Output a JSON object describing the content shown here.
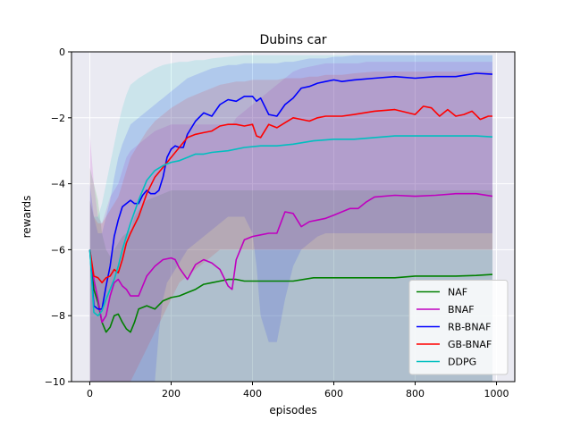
{
  "chart_data": {
    "type": "line",
    "title": "Dubins car",
    "xlabel": "episodes",
    "ylabel": "rewards",
    "xlim": [
      -45,
      1045
    ],
    "ylim": [
      -10,
      0
    ],
    "xticks": [
      0,
      200,
      400,
      600,
      800,
      1000
    ],
    "yticks": [
      -10,
      -8,
      -6,
      -4,
      -2,
      0
    ],
    "xtick_labels": [
      "0",
      "200",
      "400",
      "600",
      "800",
      "1000"
    ],
    "ytick_labels": [
      "−10",
      "−8",
      "−6",
      "−4",
      "−2",
      "0"
    ],
    "grid": true,
    "background": "#eaeaf2",
    "legend_position": "lower right",
    "series": [
      {
        "name": "NAF",
        "color": "#008000",
        "x": [
          0,
          10,
          20,
          30,
          40,
          50,
          60,
          70,
          80,
          90,
          100,
          110,
          120,
          140,
          160,
          180,
          200,
          220,
          240,
          260,
          280,
          300,
          320,
          340,
          360,
          380,
          400,
          450,
          500,
          550,
          600,
          650,
          700,
          750,
          800,
          850,
          900,
          950,
          990
        ],
        "y": [
          -6.0,
          -7.2,
          -7.6,
          -8.2,
          -8.5,
          -8.35,
          -8.0,
          -7.95,
          -8.2,
          -8.4,
          -8.5,
          -8.2,
          -7.8,
          -7.7,
          -7.8,
          -7.55,
          -7.45,
          -7.4,
          -7.3,
          -7.2,
          -7.05,
          -7.0,
          -6.95,
          -6.9,
          -6.9,
          -6.95,
          -6.95,
          -6.95,
          -6.95,
          -6.85,
          -6.85,
          -6.85,
          -6.85,
          -6.85,
          -6.8,
          -6.8,
          -6.8,
          -6.78,
          -6.75
        ],
        "lower": [
          -10,
          -10,
          -10,
          -10,
          -10,
          -10,
          -10,
          -10,
          -10,
          -10,
          -10,
          -10,
          -10,
          -10,
          -10,
          -10,
          -10,
          -10,
          -10,
          -10,
          -10,
          -10,
          -10,
          -10,
          -10,
          -10,
          -10,
          -10,
          -10,
          -10,
          -10,
          -10,
          -10,
          -10,
          -10,
          -10,
          -10,
          -10,
          -10
        ],
        "upper": [
          -3.5,
          -4.0,
          -4.5,
          -5.5,
          -6.0,
          -6.2,
          -6.0,
          -5.8,
          -5.6,
          -5.5,
          -5.4,
          -5.0,
          -4.8,
          -4.5,
          -4.4,
          -4.3,
          -4.2,
          -4.2,
          -4.2,
          -4.2,
          -4.2,
          -4.2,
          -4.2,
          -4.2,
          -4.2,
          -4.2,
          -4.2,
          -4.2,
          -4.2,
          -4.2,
          -4.2,
          -4.2,
          -4.2,
          -4.2,
          -4.2,
          -4.2,
          -4.2,
          -4.2,
          -4.2
        ]
      },
      {
        "name": "BNAF",
        "color": "#bf00bf",
        "x": [
          0,
          10,
          20,
          30,
          40,
          50,
          60,
          70,
          80,
          90,
          100,
          120,
          140,
          160,
          180,
          200,
          210,
          220,
          240,
          260,
          280,
          300,
          320,
          340,
          350,
          360,
          380,
          400,
          420,
          440,
          460,
          480,
          500,
          520,
          540,
          560,
          580,
          600,
          620,
          640,
          660,
          680,
          700,
          750,
          800,
          850,
          900,
          950,
          990
        ],
        "y": [
          -6.0,
          -6.9,
          -7.5,
          -8.2,
          -8.0,
          -7.4,
          -7.0,
          -6.9,
          -7.1,
          -7.2,
          -7.4,
          -7.4,
          -6.8,
          -6.5,
          -6.3,
          -6.25,
          -6.3,
          -6.55,
          -6.9,
          -6.45,
          -6.3,
          -6.4,
          -6.6,
          -7.1,
          -7.2,
          -6.3,
          -5.7,
          -5.6,
          -5.55,
          -5.5,
          -5.5,
          -4.85,
          -4.9,
          -5.3,
          -5.15,
          -5.1,
          -5.05,
          -4.95,
          -4.85,
          -4.75,
          -4.75,
          -4.55,
          -4.4,
          -4.35,
          -4.38,
          -4.35,
          -4.3,
          -4.3,
          -4.38
        ],
        "lower": [
          -10,
          -10,
          -10,
          -10,
          -10,
          -10,
          -10,
          -10,
          -10,
          -10,
          -10,
          -10,
          -10,
          -10,
          -10,
          -10,
          -10,
          -10,
          -10,
          -10,
          -10,
          -10,
          -10,
          -10,
          -10,
          -10,
          -10,
          -10,
          -10,
          -10,
          -10,
          -10,
          -10,
          -10,
          -10,
          -10,
          -10,
          -10,
          -10,
          -10,
          -10,
          -10,
          -10,
          -10,
          -10,
          -10,
          -10,
          -10,
          -10
        ],
        "upper": [
          -2.5,
          -4.0,
          -5.0,
          -5.2,
          -4.8,
          -4.4,
          -4.2,
          -4.0,
          -3.6,
          -3.2,
          -3.0,
          -2.8,
          -2.6,
          -2.4,
          -2.3,
          -2.2,
          -2.2,
          -2.2,
          -2.2,
          -2.2,
          -2.2,
          -2.2,
          -2.2,
          -2.2,
          -2.2,
          -2.0,
          -1.8,
          -1.6,
          -1.4,
          -1.2,
          -1.0,
          -0.8,
          -0.6,
          -0.5,
          -0.45,
          -0.4,
          -0.35,
          -0.35,
          -0.35,
          -0.35,
          -0.35,
          -0.3,
          -0.3,
          -0.3,
          -0.3,
          -0.3,
          -0.3,
          -0.3,
          -0.3
        ]
      },
      {
        "name": "RB-BNAF",
        "color": "#0000ff",
        "x": [
          0,
          10,
          20,
          30,
          40,
          50,
          60,
          70,
          80,
          90,
          100,
          110,
          120,
          130,
          140,
          150,
          160,
          170,
          180,
          190,
          200,
          210,
          220,
          230,
          240,
          260,
          280,
          300,
          320,
          340,
          360,
          380,
          400,
          410,
          420,
          440,
          460,
          480,
          500,
          520,
          540,
          560,
          580,
          600,
          620,
          650,
          700,
          750,
          800,
          850,
          900,
          950,
          990
        ],
        "y": [
          -6.0,
          -7.7,
          -7.8,
          -7.8,
          -7.1,
          -6.5,
          -5.6,
          -5.1,
          -4.7,
          -4.6,
          -4.5,
          -4.6,
          -4.6,
          -4.35,
          -4.2,
          -4.3,
          -4.3,
          -4.2,
          -3.8,
          -3.2,
          -2.95,
          -2.85,
          -2.9,
          -2.9,
          -2.5,
          -2.1,
          -1.85,
          -1.95,
          -1.6,
          -1.45,
          -1.5,
          -1.35,
          -1.35,
          -1.5,
          -1.4,
          -1.9,
          -1.95,
          -1.6,
          -1.4,
          -1.1,
          -1.05,
          -0.95,
          -0.9,
          -0.85,
          -0.9,
          -0.85,
          -0.8,
          -0.75,
          -0.8,
          -0.75,
          -0.75,
          -0.65,
          -0.68
        ],
        "lower": [
          -10,
          -10,
          -10,
          -10,
          -10,
          -10,
          -10,
          -10,
          -10,
          -10,
          -10,
          -10,
          -10,
          -10,
          -10,
          -10,
          -10,
          -8.5,
          -7.5,
          -7.0,
          -6.8,
          -6.6,
          -6.4,
          -6.2,
          -6.0,
          -5.8,
          -5.6,
          -5.4,
          -5.2,
          -5.0,
          -5.0,
          -5.0,
          -5.5,
          -6.5,
          -8.0,
          -8.8,
          -8.8,
          -7.5,
          -6.5,
          -6.0,
          -5.8,
          -5.6,
          -5.5,
          -5.5,
          -5.5,
          -5.5,
          -5.5,
          -5.5,
          -5.5,
          -5.5,
          -5.5,
          -5.5,
          -5.5
        ],
        "upper": [
          -4.0,
          -5.0,
          -5.5,
          -5.5,
          -5.0,
          -4.5,
          -3.8,
          -3.2,
          -2.8,
          -2.5,
          -2.2,
          -2.1,
          -2.0,
          -1.9,
          -1.8,
          -1.7,
          -1.6,
          -1.5,
          -1.4,
          -1.3,
          -1.2,
          -1.1,
          -1.0,
          -0.9,
          -0.8,
          -0.7,
          -0.6,
          -0.5,
          -0.45,
          -0.4,
          -0.4,
          -0.35,
          -0.35,
          -0.35,
          -0.35,
          -0.35,
          -0.35,
          -0.3,
          -0.3,
          -0.25,
          -0.2,
          -0.2,
          -0.2,
          -0.15,
          -0.15,
          -0.1,
          -0.1,
          -0.1,
          -0.1,
          -0.1,
          -0.1,
          -0.1,
          -0.1
        ]
      },
      {
        "name": "GB-BNAF",
        "color": "#ff0000",
        "x": [
          0,
          10,
          20,
          30,
          40,
          50,
          60,
          70,
          80,
          90,
          100,
          120,
          140,
          160,
          180,
          200,
          220,
          240,
          260,
          280,
          300,
          320,
          340,
          360,
          380,
          400,
          410,
          420,
          440,
          460,
          480,
          500,
          520,
          540,
          560,
          580,
          600,
          620,
          650,
          700,
          750,
          800,
          820,
          840,
          860,
          880,
          900,
          920,
          940,
          960,
          980,
          990
        ],
        "y": [
          -6.0,
          -6.8,
          -6.85,
          -7.0,
          -6.85,
          -6.8,
          -6.6,
          -6.7,
          -6.3,
          -5.8,
          -5.5,
          -5.0,
          -4.3,
          -3.8,
          -3.5,
          -3.2,
          -2.9,
          -2.6,
          -2.5,
          -2.45,
          -2.4,
          -2.25,
          -2.2,
          -2.2,
          -2.25,
          -2.2,
          -2.55,
          -2.6,
          -2.2,
          -2.3,
          -2.15,
          -2.0,
          -2.05,
          -2.1,
          -2.0,
          -1.95,
          -1.95,
          -1.95,
          -1.9,
          -1.8,
          -1.75,
          -1.9,
          -1.65,
          -1.7,
          -1.95,
          -1.75,
          -1.95,
          -1.9,
          -1.8,
          -2.05,
          -1.95,
          -1.95
        ],
        "lower": [
          -10,
          -10,
          -10,
          -10,
          -10,
          -10,
          -10,
          -10,
          -10,
          -10,
          -10,
          -9.5,
          -9.0,
          -8.5,
          -8.0,
          -7.5,
          -7.0,
          -6.8,
          -6.6,
          -6.4,
          -6.2,
          -6.0,
          -6.0,
          -6.0,
          -6.0,
          -6.0,
          -6.0,
          -6.0,
          -6.0,
          -6.0,
          -6.0,
          -6.0,
          -6.0,
          -6.0,
          -6.0,
          -6.0,
          -6.0,
          -6.0,
          -6.0,
          -6.0,
          -6.0,
          -6.0,
          -6.0,
          -6.0,
          -6.0,
          -6.0,
          -6.0,
          -6.0,
          -6.0,
          -6.0,
          -6.0,
          -6.0
        ],
        "upper": [
          -4.5,
          -5.0,
          -5.2,
          -5.2,
          -5.0,
          -4.8,
          -4.6,
          -4.4,
          -4.0,
          -3.6,
          -3.2,
          -2.8,
          -2.4,
          -2.1,
          -1.9,
          -1.7,
          -1.55,
          -1.4,
          -1.3,
          -1.2,
          -1.1,
          -1.0,
          -0.95,
          -0.9,
          -0.9,
          -0.85,
          -0.85,
          -0.85,
          -0.85,
          -0.85,
          -0.8,
          -0.8,
          -0.8,
          -0.75,
          -0.75,
          -0.7,
          -0.7,
          -0.7,
          -0.65,
          -0.6,
          -0.6,
          -0.6,
          -0.6,
          -0.6,
          -0.6,
          -0.6,
          -0.6,
          -0.6,
          -0.6,
          -0.6,
          -0.6,
          -0.6
        ]
      },
      {
        "name": "DDPG",
        "color": "#00bfbf",
        "x": [
          0,
          10,
          20,
          30,
          40,
          50,
          60,
          70,
          80,
          90,
          100,
          120,
          140,
          160,
          180,
          200,
          220,
          240,
          260,
          280,
          300,
          340,
          380,
          420,
          460,
          500,
          550,
          600,
          650,
          700,
          750,
          800,
          850,
          900,
          950,
          990
        ],
        "y": [
          -6.0,
          -7.9,
          -8.0,
          -7.85,
          -7.5,
          -7.2,
          -6.9,
          -6.5,
          -6.0,
          -5.6,
          -5.2,
          -4.5,
          -3.9,
          -3.6,
          -3.45,
          -3.35,
          -3.3,
          -3.2,
          -3.1,
          -3.1,
          -3.05,
          -3.0,
          -2.9,
          -2.85,
          -2.85,
          -2.8,
          -2.7,
          -2.65,
          -2.65,
          -2.6,
          -2.55,
          -2.55,
          -2.55,
          -2.55,
          -2.55,
          -2.58
        ],
        "lower": [
          -10,
          -10,
          -10,
          -10,
          -10,
          -10,
          -10,
          -10,
          -10,
          -10,
          -10,
          -10,
          -10,
          -10,
          -10,
          -10,
          -10,
          -10,
          -10,
          -10,
          -10,
          -10,
          -10,
          -10,
          -10,
          -10,
          -10,
          -10,
          -10,
          -10,
          -10,
          -10,
          -10,
          -10,
          -10,
          -10
        ],
        "upper": [
          -4.5,
          -5.0,
          -5.0,
          -4.6,
          -4.0,
          -3.4,
          -2.8,
          -2.2,
          -1.7,
          -1.3,
          -1.0,
          -0.8,
          -0.65,
          -0.5,
          -0.4,
          -0.35,
          -0.3,
          -0.3,
          -0.25,
          -0.25,
          -0.2,
          -0.15,
          -0.1,
          -0.1,
          -0.1,
          -0.1,
          -0.1,
          -0.1,
          -0.1,
          -0.1,
          -0.1,
          -0.1,
          -0.1,
          -0.1,
          -0.1,
          -0.1
        ]
      }
    ]
  }
}
